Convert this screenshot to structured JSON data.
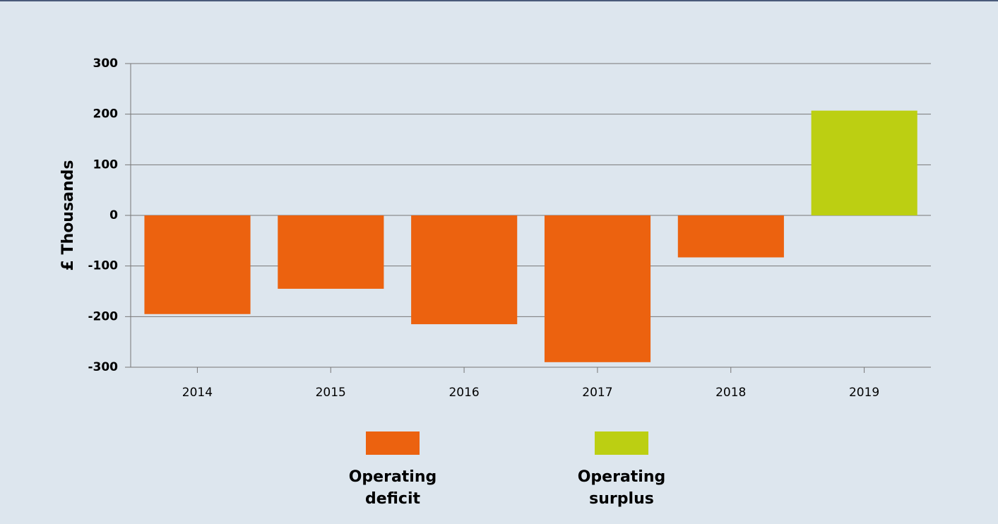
{
  "chart_data": {
    "type": "bar",
    "y_label": "£ Thousands",
    "categories": [
      "2014",
      "2015",
      "2016",
      "2017",
      "2018",
      "2019"
    ],
    "series": [
      {
        "name": "Operating deficit",
        "color": "#ec620f",
        "values": [
          -195,
          -145,
          -215,
          -290,
          -83,
          null
        ]
      },
      {
        "name": "Operating surplus",
        "color": "#bccf12",
        "values": [
          null,
          null,
          null,
          null,
          null,
          207
        ]
      }
    ],
    "ylim": [
      -300,
      300
    ],
    "yticks": [
      -300,
      -200,
      -100,
      0,
      100,
      200,
      300
    ],
    "grid": true
  }
}
